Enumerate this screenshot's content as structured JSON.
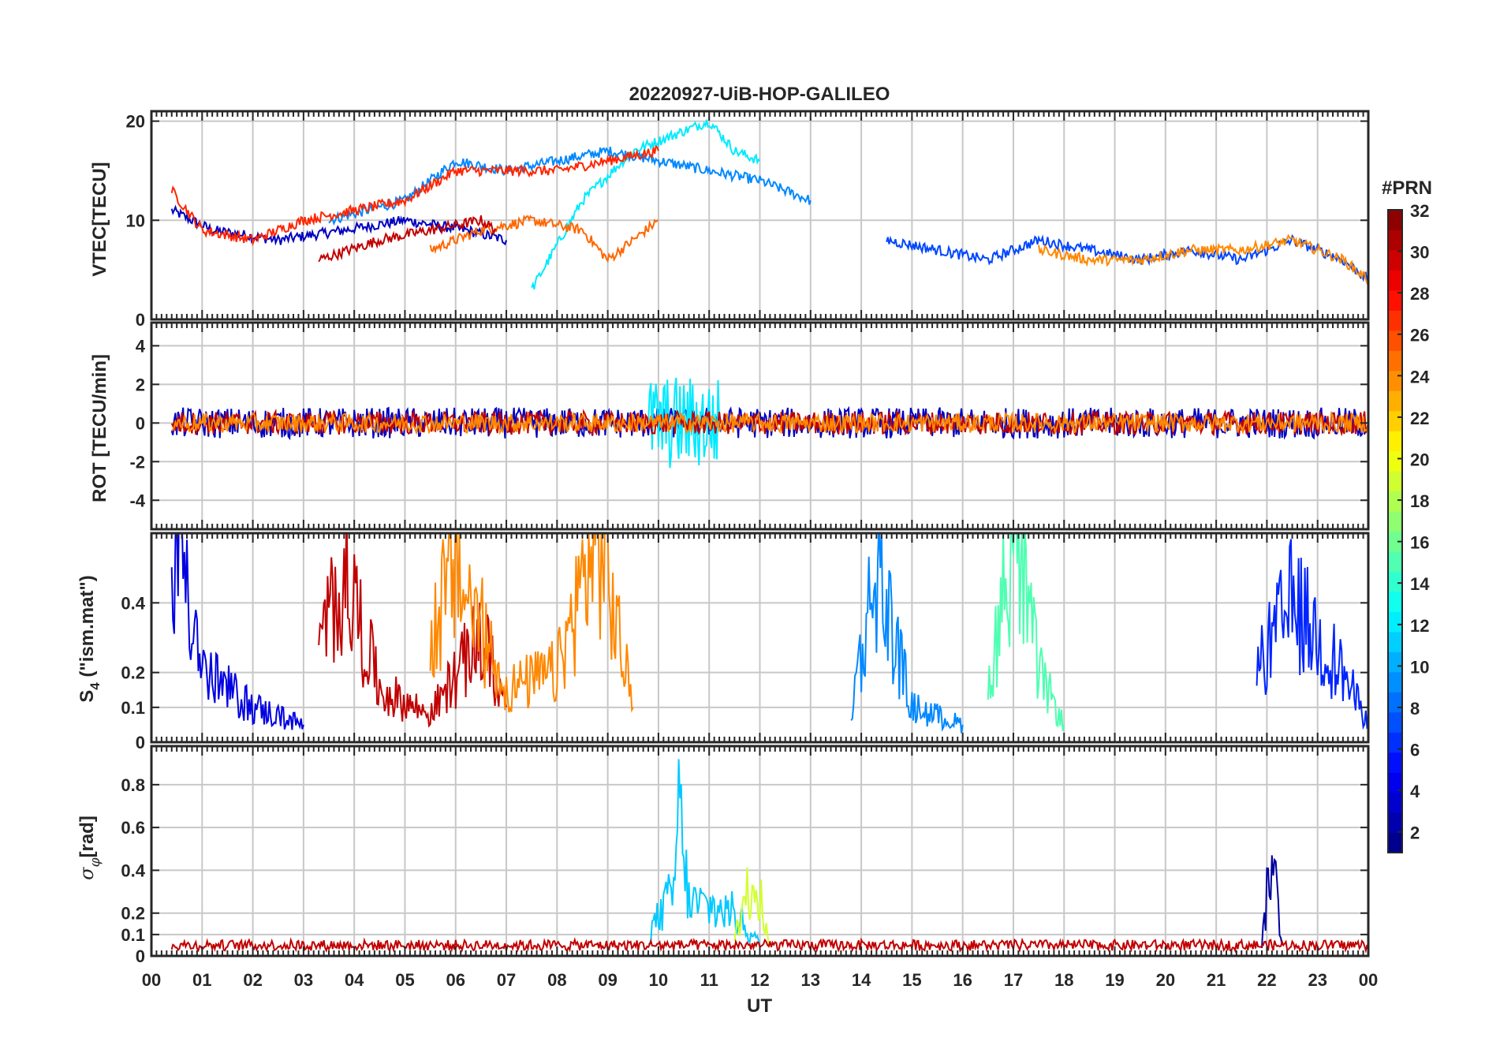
{
  "figure": {
    "title": "20220927-UiB-HOP-GALILEO",
    "xlabel": "UT",
    "colorbar": {
      "label": "#PRN",
      "range": [
        1,
        32
      ],
      "ticks": [
        2,
        4,
        6,
        8,
        10,
        12,
        14,
        16,
        18,
        20,
        22,
        24,
        26,
        28,
        30,
        32
      ],
      "colormap": "jet",
      "n_colors": 32
    }
  },
  "chart_data": [
    {
      "type": "line",
      "panel": "vtec",
      "ylabel": "VTEC[TECU]",
      "ylim": [
        0,
        21
      ],
      "yticks": [
        0,
        10,
        20
      ],
      "xlim": [
        0,
        24
      ],
      "xticks": [
        "00",
        "01",
        "02",
        "03",
        "04",
        "05",
        "06",
        "07",
        "08",
        "09",
        "10",
        "11",
        "12",
        "13",
        "14",
        "15",
        "16",
        "17",
        "18",
        "19",
        "20",
        "21",
        "22",
        "23",
        "00"
      ],
      "grid": true,
      "series_by_prn": "colored by #PRN (jet colormap)",
      "series": [
        {
          "prn": 3,
          "x": [
            0.4,
            1.2,
            2.5,
            3.8,
            5.0,
            6.2,
            7.0
          ],
          "values": [
            11,
            9,
            8,
            9,
            10,
            9,
            8
          ]
        },
        {
          "prn": 9,
          "x": [
            3.5,
            5.0,
            6.0,
            7.0,
            8.0,
            9.0,
            10.0,
            11.0,
            12.0,
            13.0
          ],
          "values": [
            10,
            12,
            16,
            15,
            16,
            17,
            16,
            15,
            14,
            12
          ]
        },
        {
          "prn": 12,
          "x": [
            7.5,
            8.5,
            9.5,
            10.5,
            11.0,
            11.5,
            12.0
          ],
          "values": [
            3,
            12,
            17,
            19,
            20,
            17,
            16
          ]
        },
        {
          "prn": 25,
          "x": [
            5.5,
            6.5,
            7.5,
            8.5,
            9.0,
            10.0
          ],
          "values": [
            7,
            9,
            10,
            9,
            6,
            10
          ]
        },
        {
          "prn": 30,
          "x": [
            3.3,
            4.5,
            5.5,
            6.5,
            6.8
          ],
          "values": [
            6,
            8,
            9,
            10,
            9
          ]
        },
        {
          "prn": 27,
          "x": [
            0.4,
            1.0,
            2.0,
            3.0,
            4.0,
            5.0,
            6.0,
            7.0,
            8.0,
            9.0,
            10.0
          ],
          "values": [
            13,
            9,
            8,
            10,
            11,
            12,
            15,
            15,
            15,
            16,
            17
          ]
        },
        {
          "prn": 7,
          "x": [
            14.5,
            15.5,
            16.5,
            17.5,
            18.5,
            19.5,
            20.5,
            21.5,
            22.5,
            23.5,
            24.0
          ],
          "values": [
            8,
            7,
            6,
            8,
            7,
            6,
            7,
            6,
            8,
            6,
            4
          ]
        },
        {
          "prn": 24,
          "x": [
            17.5,
            18.5,
            19.5,
            20.5,
            21.5,
            22.5,
            23.5,
            24.0
          ],
          "values": [
            7,
            6,
            6,
            7,
            7,
            8,
            6,
            4
          ]
        }
      ]
    },
    {
      "type": "line",
      "panel": "rot",
      "ylabel": "ROT [TECU/min]",
      "ylim": [
        -5.5,
        5.2
      ],
      "yticks": [
        -4,
        -2,
        0,
        2,
        4
      ],
      "xlim": [
        0,
        24
      ],
      "grid": true,
      "series": [
        {
          "prn": 3,
          "x": [
            0.4,
            24.0
          ],
          "values": [
            0,
            0
          ],
          "noise_amplitude": 0.8
        },
        {
          "prn": 12,
          "x": [
            9.8,
            11.2
          ],
          "values": [
            0,
            0
          ],
          "noise_amplitude": 2.5
        },
        {
          "prn": 30,
          "x": [
            0.4,
            24.0
          ],
          "values": [
            0,
            0
          ],
          "noise_amplitude": 0.6
        },
        {
          "prn": 24,
          "x": [
            0.4,
            24.0
          ],
          "values": [
            0,
            0
          ],
          "noise_amplitude": 0.5
        }
      ]
    },
    {
      "type": "line",
      "panel": "s4",
      "ylabel": "S_4 (\"ism.mat\")",
      "ylim": [
        0,
        0.6
      ],
      "yticks": [
        0,
        0.1,
        0.2,
        0.4
      ],
      "xlim": [
        0,
        24
      ],
      "grid": true,
      "series": [
        {
          "prn": 4,
          "x": [
            0.4,
            0.6,
            1.0,
            2.0,
            3.0
          ],
          "values": [
            0.4,
            0.6,
            0.2,
            0.1,
            0.05
          ]
        },
        {
          "prn": 30,
          "x": [
            3.3,
            3.8,
            4.5,
            5.5,
            6.5,
            7.0
          ],
          "values": [
            0.25,
            0.5,
            0.15,
            0.08,
            0.3,
            0.1
          ]
        },
        {
          "prn": 24,
          "x": [
            5.5,
            6.0,
            7.0,
            8.0,
            8.8,
            9.5
          ],
          "values": [
            0.3,
            0.5,
            0.15,
            0.2,
            0.6,
            0.1
          ]
        },
        {
          "prn": 9,
          "x": [
            13.8,
            14.3,
            15.0,
            16.0
          ],
          "values": [
            0.1,
            0.5,
            0.1,
            0.05
          ]
        },
        {
          "prn": 15,
          "x": [
            16.5,
            17.0,
            17.5,
            18.0
          ],
          "values": [
            0.15,
            0.6,
            0.2,
            0.05
          ]
        },
        {
          "prn": 6,
          "x": [
            21.8,
            22.5,
            23.5,
            24.0
          ],
          "values": [
            0.2,
            0.4,
            0.2,
            0.05
          ]
        }
      ]
    },
    {
      "type": "line",
      "panel": "sigma_phi",
      "ylabel": "σ_φ[rad]",
      "ylim": [
        0,
        0.98
      ],
      "yticks": [
        0,
        0.1,
        0.2,
        0.4,
        0.6,
        0.8
      ],
      "xlim": [
        0,
        24
      ],
      "grid": true,
      "series": [
        {
          "prn": 11,
          "x": [
            9.8,
            10.3,
            10.4,
            10.6,
            11.5,
            12.0
          ],
          "values": [
            0.1,
            0.3,
            0.7,
            0.25,
            0.2,
            0.05
          ]
        },
        {
          "prn": 19,
          "x": [
            11.5,
            11.9,
            12.2
          ],
          "values": [
            0.1,
            0.4,
            0.05
          ]
        },
        {
          "prn": 2,
          "x": [
            21.9,
            22.1,
            22.3
          ],
          "values": [
            0.05,
            0.5,
            0.05
          ]
        },
        {
          "prn": 30,
          "x": [
            0.4,
            24.0
          ],
          "values": [
            0.05,
            0.05
          ],
          "noise_amplitude": 0.06
        }
      ]
    }
  ]
}
